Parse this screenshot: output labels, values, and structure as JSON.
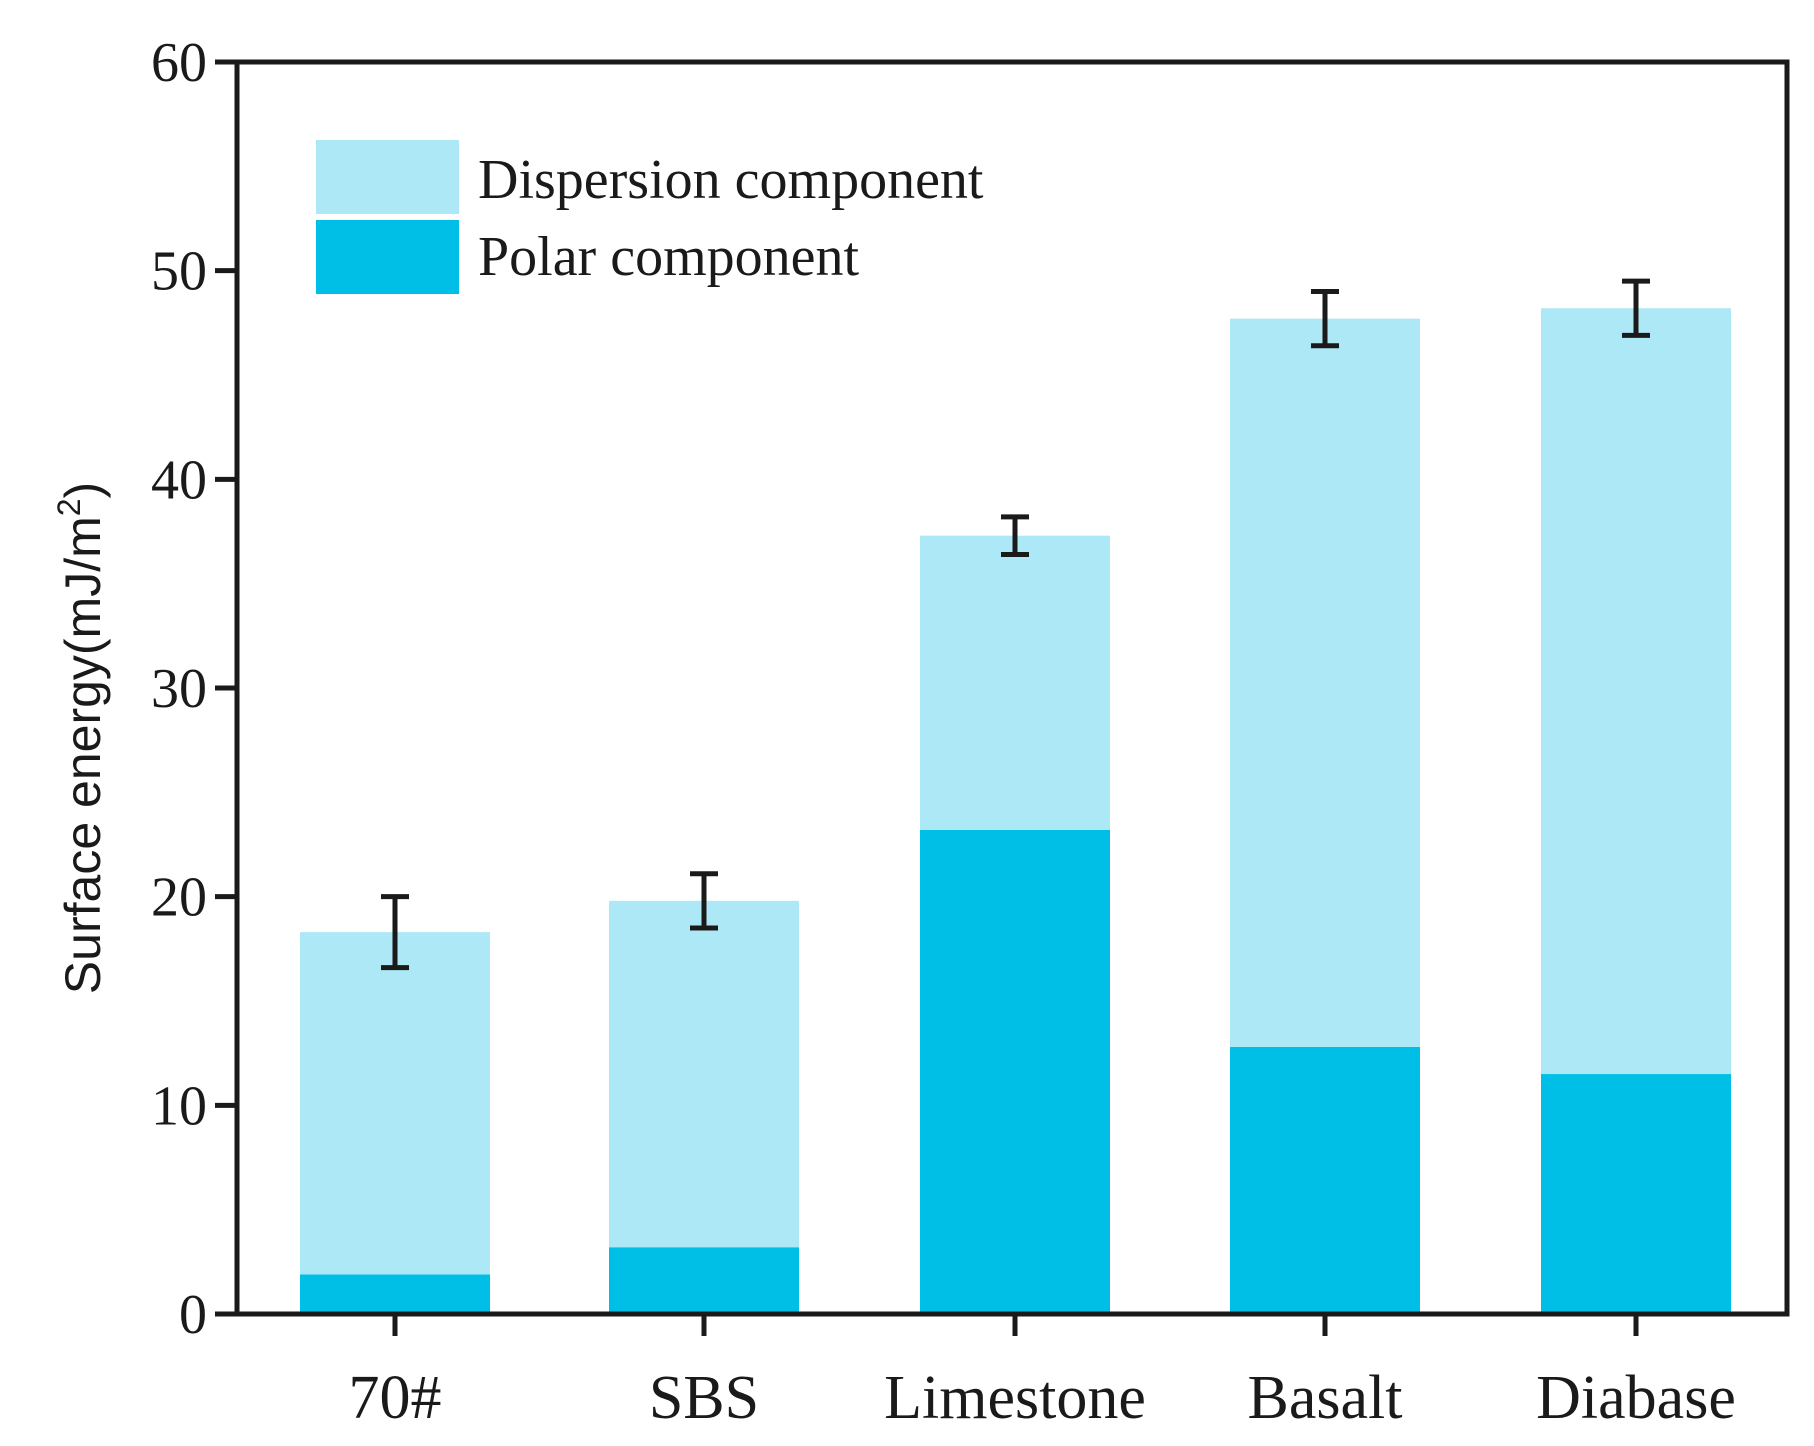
{
  "chart_data": {
    "type": "bar",
    "stacked": true,
    "title": "",
    "xlabel": "",
    "ylabel": "Surface energy(mJ/m",
    "ylabel_superscript": "2",
    "ylabel_close": ")",
    "ylim": [
      0,
      60
    ],
    "yticks": [
      0,
      10,
      20,
      30,
      40,
      50,
      60
    ],
    "categories": [
      "70#",
      "SBS",
      "Limestone",
      "Basalt",
      "Diabase"
    ],
    "series": [
      {
        "name": "Polar component",
        "color": "#00bfe6",
        "values": [
          1.9,
          3.2,
          23.2,
          12.8,
          11.5
        ]
      },
      {
        "name": "Dispersion component",
        "color": "#ade8f6",
        "values": [
          16.4,
          16.6,
          14.1,
          34.9,
          36.7
        ]
      }
    ],
    "totals": [
      18.3,
      19.8,
      37.3,
      47.7,
      48.2
    ],
    "error": [
      1.7,
      1.3,
      0.9,
      1.3,
      1.3
    ],
    "legend": {
      "position": "top-left",
      "entries": [
        "Dispersion component",
        "Polar component"
      ]
    }
  }
}
